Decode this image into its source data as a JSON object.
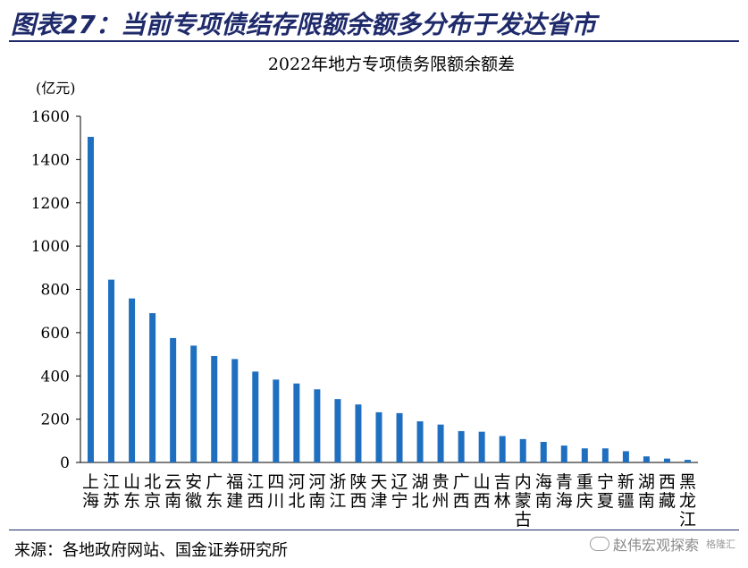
{
  "figure": {
    "title": "图表27：当前专项债结存限额余额多分布于发达省市",
    "source": "来源：各地政府网站、国金证券研究所",
    "watermark": "赵伟宏观探索",
    "watermark_brand": "格隆汇"
  },
  "chart_data": {
    "type": "bar",
    "title": "2022年地方专项债务限额余额差",
    "ylabel": "(亿元)",
    "xlabel": "",
    "ylim": [
      0,
      1600
    ],
    "yticks": [
      0,
      200,
      400,
      600,
      800,
      1000,
      1200,
      1400,
      1600
    ],
    "grid": false,
    "bar_color": "#1f6fc0",
    "categories": [
      "上海",
      "江苏",
      "山东",
      "北京",
      "云南",
      "安徽",
      "广东",
      "福建",
      "江西",
      "四川",
      "河北",
      "河南",
      "浙江",
      "陕西",
      "天津",
      "辽宁",
      "湖北",
      "贵州",
      "广西",
      "山西",
      "吉林",
      "内蒙古",
      "海南",
      "青海",
      "重庆",
      "宁夏",
      "新疆",
      "湖南",
      "西藏",
      "黑龙江"
    ],
    "values": [
      1505,
      845,
      758,
      690,
      575,
      540,
      492,
      478,
      420,
      383,
      365,
      338,
      293,
      268,
      232,
      228,
      190,
      175,
      145,
      142,
      122,
      108,
      95,
      78,
      65,
      65,
      52,
      28,
      18,
      12
    ]
  }
}
